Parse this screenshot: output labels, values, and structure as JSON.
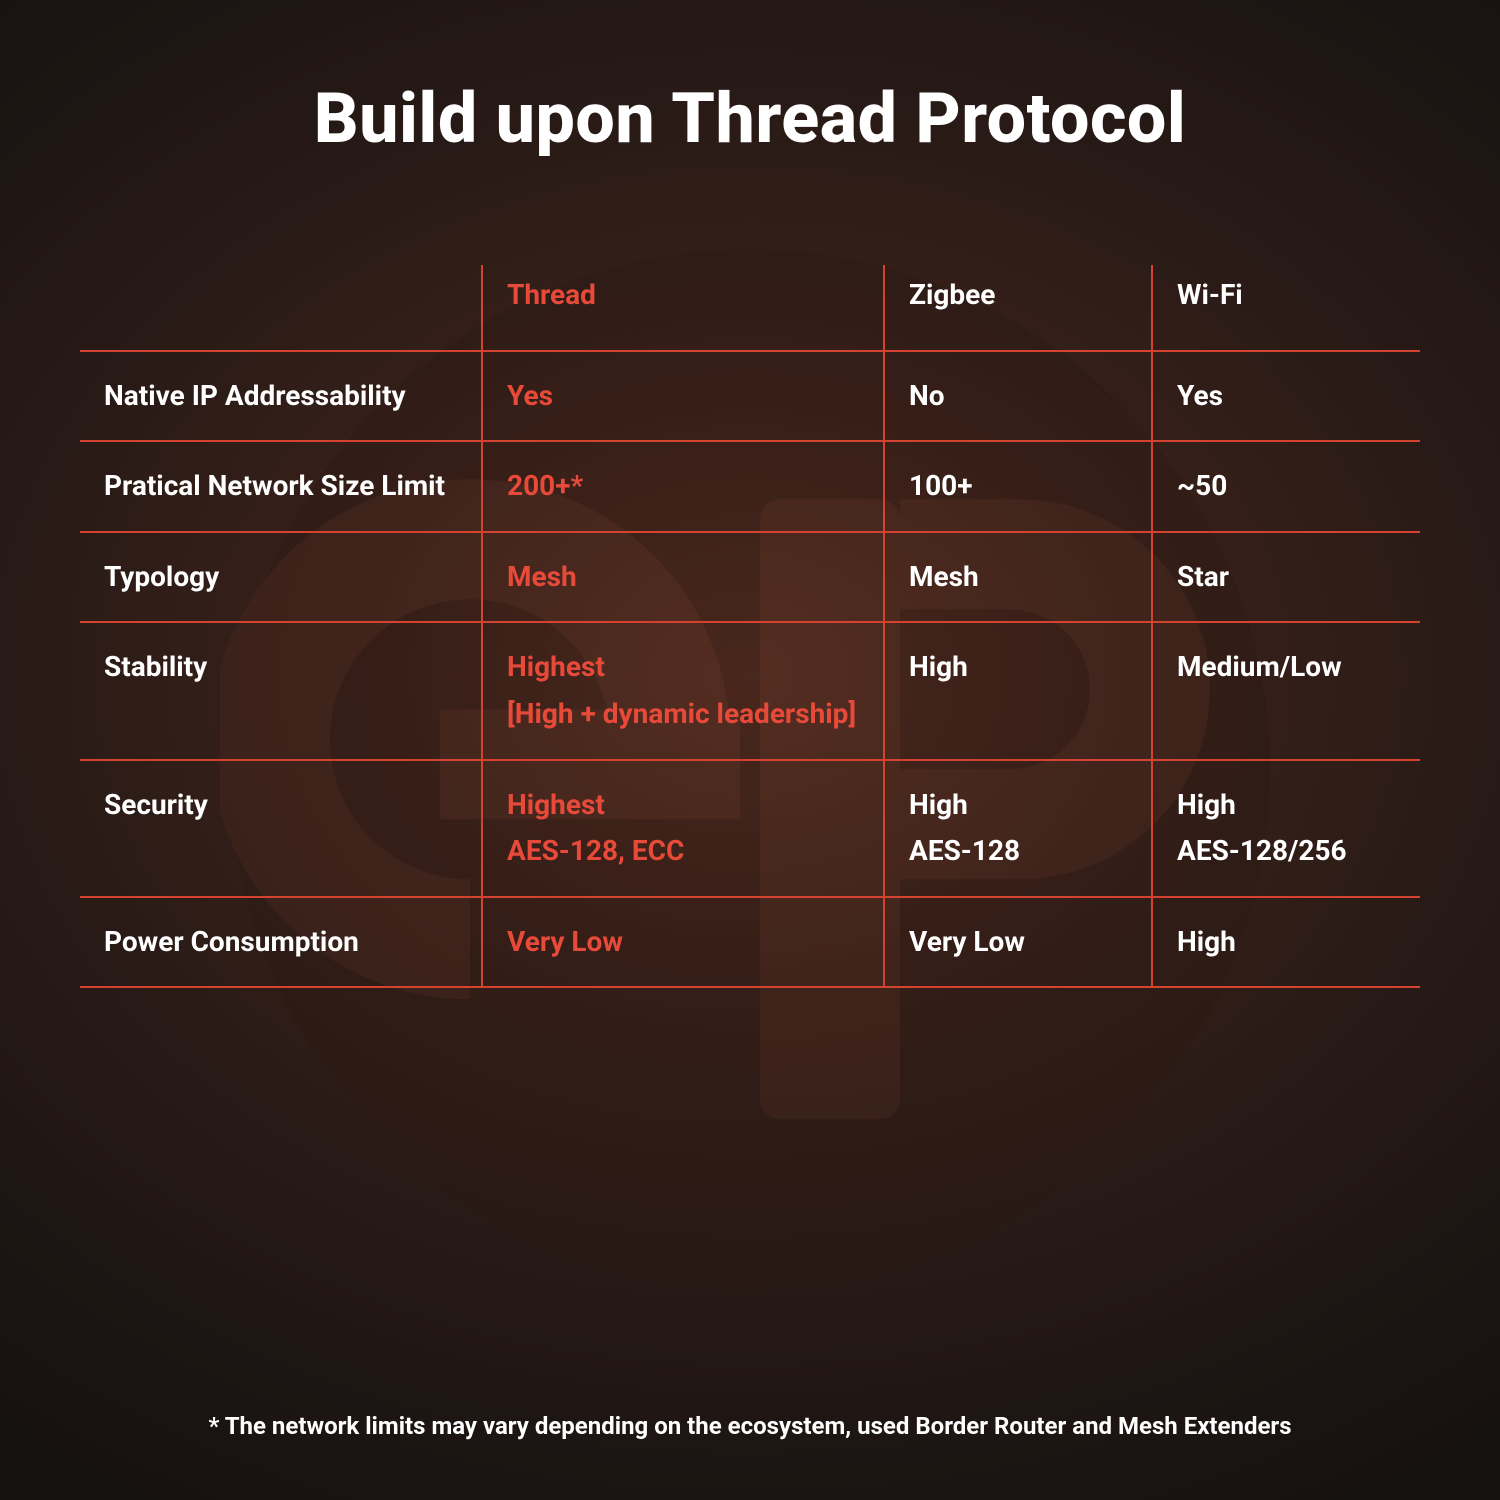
{
  "colors": {
    "accent": "#e84a3a",
    "line": "#d4432f",
    "text": "#ffffff",
    "logo_fill": "#2b1914",
    "logo_fg": "#4a2a20"
  },
  "title": {
    "text": "Build upon Thread Protocol",
    "fontsize": 70
  },
  "cell_fontsize": 28,
  "logo": {
    "diameter": 1060
  },
  "table": {
    "columns": [
      "",
      "Thread",
      "Zigbee",
      "Wi-Fi"
    ],
    "header_highlight_col": 1,
    "rows": [
      {
        "label": "Native IP Addressability",
        "cells": [
          "Yes",
          "No",
          "Yes"
        ],
        "height": "normal"
      },
      {
        "label": " Pratical Network Size Limit",
        "cells": [
          "200+*",
          "100+",
          "~50"
        ],
        "height": "normal"
      },
      {
        "label": "Typology",
        "cells": [
          "Mesh",
          "Mesh",
          "Star"
        ],
        "height": "normal"
      },
      {
        "label": "Stability",
        "cells": [
          "Highest\n[High + dynamic leadership]",
          "High",
          "Medium/Low"
        ],
        "height": "tall"
      },
      {
        "label": "Security",
        "cells": [
          "Highest\nAES-128, ECC",
          "High\nAES-128",
          "High\nAES-128/256"
        ],
        "height": "med"
      },
      {
        "label": "Power Consumption",
        "cells": [
          "Very Low",
          "Very Low",
          "High"
        ],
        "height": "normal"
      }
    ],
    "highlight_col": 1
  },
  "footnote": {
    "text": "* The network limits may vary depending on the ecosystem, used Border Router and Mesh Extenders",
    "fontsize": 24
  }
}
